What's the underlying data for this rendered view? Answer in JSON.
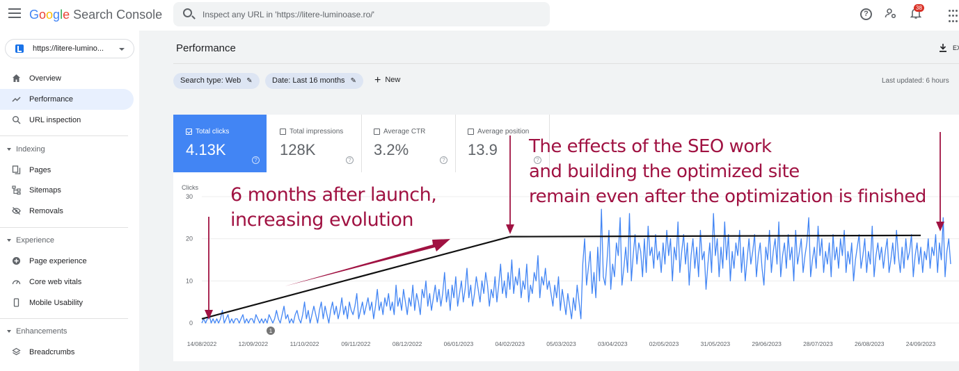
{
  "header": {
    "logo_letters": [
      "G",
      "o",
      "o",
      "g",
      "l",
      "e"
    ],
    "product": "Search Console",
    "search_placeholder": "Inspect any URL in 'https://litere-luminoase.ro/'",
    "notification_count": "38"
  },
  "sidebar": {
    "property": "https://litere-lumino...",
    "items_top": [
      {
        "label": "Overview",
        "icon": "home-icon"
      },
      {
        "label": "Performance",
        "icon": "trending-up-icon",
        "active": true
      },
      {
        "label": "URL inspection",
        "icon": "search-icon"
      }
    ],
    "sections": [
      {
        "label": "Indexing",
        "items": [
          {
            "label": "Pages",
            "icon": "pages-icon"
          },
          {
            "label": "Sitemaps",
            "icon": "sitemap-icon"
          },
          {
            "label": "Removals",
            "icon": "removals-icon"
          }
        ]
      },
      {
        "label": "Experience",
        "items": [
          {
            "label": "Page experience",
            "icon": "page-experience-icon"
          },
          {
            "label": "Core web vitals",
            "icon": "speed-icon"
          },
          {
            "label": "Mobile Usability",
            "icon": "mobile-icon"
          }
        ]
      },
      {
        "label": "Enhancements",
        "items": [
          {
            "label": "Breadcrumbs",
            "icon": "layers-icon"
          }
        ]
      }
    ]
  },
  "main": {
    "title": "Performance",
    "export_label": "EX",
    "filters": [
      "Search type: Web",
      "Date: Last 16 months"
    ],
    "new_label": "New",
    "last_updated": "Last updated: 6 hours"
  },
  "metrics": [
    {
      "label": "Total clicks",
      "value": "4.13K",
      "selected": true
    },
    {
      "label": "Total impressions",
      "value": "128K",
      "selected": false
    },
    {
      "label": "Average CTR",
      "value": "3.2%",
      "selected": false
    },
    {
      "label": "Average position",
      "value": "13.9",
      "selected": false
    }
  ],
  "annotations": {
    "left": [
      "6 months after launch,",
      "increasing evolution"
    ],
    "right": [
      "The effects of the SEO work",
      "and building the optimized site",
      "remain even after the optimization is finished"
    ],
    "annotation_color": "#a01242",
    "marker_label": "1"
  },
  "chart_data": {
    "type": "line",
    "ylabel": "Clicks",
    "ylim": [
      0,
      30
    ],
    "yticks": [
      0,
      10,
      20,
      30
    ],
    "x_tick_labels": [
      "14/08/2022",
      "12/09/2022",
      "11/10/2022",
      "09/11/2022",
      "08/12/2022",
      "06/01/2023",
      "04/02/2023",
      "05/03/2023",
      "03/04/2023",
      "02/05/2023",
      "31/05/2023",
      "29/06/2023",
      "28/07/2023",
      "26/08/2023",
      "24/09/2023"
    ],
    "series_color": "#4285f4",
    "trend_lines": [
      {
        "from": [
          "14/08/2022",
          1
        ],
        "to": [
          "04/02/2023",
          20.5
        ]
      },
      {
        "from": [
          "04/02/2023",
          20.5
        ],
        "to": [
          "24/09/2023",
          20.8
        ]
      }
    ],
    "values": [
      0,
      1,
      0,
      1,
      2,
      0,
      1,
      0,
      1,
      0,
      1,
      3,
      0,
      1,
      2,
      0,
      1,
      0,
      1,
      1,
      0,
      1,
      2,
      0,
      1,
      0,
      1,
      1,
      0,
      2,
      1,
      0,
      1,
      0,
      1,
      0,
      2,
      1,
      0,
      1,
      3,
      1,
      0,
      2,
      4,
      1,
      2,
      0,
      1,
      0,
      2,
      3,
      1,
      0,
      2,
      5,
      1,
      3,
      0,
      2,
      4,
      2,
      0,
      3,
      5,
      1,
      4,
      2,
      0,
      3,
      5,
      2,
      4,
      1,
      3,
      6,
      2,
      4,
      1,
      5,
      3,
      2,
      4,
      7,
      1,
      3,
      5,
      2,
      4,
      6,
      3,
      5,
      1,
      4,
      8,
      3,
      5,
      2,
      6,
      4,
      7,
      3,
      5,
      2,
      9,
      4,
      6,
      3,
      8,
      5,
      2,
      6,
      4,
      9,
      3,
      7,
      5,
      2,
      8,
      6,
      10,
      4,
      7,
      3,
      6,
      9,
      5,
      8,
      4,
      7,
      12,
      5,
      8,
      3,
      9,
      6,
      11,
      4,
      7,
      10,
      5,
      8,
      13,
      6,
      9,
      4,
      7,
      11,
      8,
      5,
      10,
      7,
      12,
      9,
      4,
      8,
      6,
      11,
      5,
      9,
      14,
      7,
      10,
      6,
      12,
      8,
      15,
      7,
      11,
      9,
      13,
      6,
      10,
      8,
      14,
      5,
      9,
      7,
      12,
      10,
      16,
      6,
      11,
      9,
      13,
      8,
      10,
      7,
      4,
      9,
      6,
      11,
      3,
      8,
      5,
      2,
      7,
      4,
      1,
      6,
      3,
      9,
      5,
      1,
      14,
      20,
      9,
      13,
      17,
      7,
      12,
      6,
      18,
      10,
      27,
      11,
      9,
      15,
      22,
      8,
      14,
      11,
      19,
      16,
      25,
      9,
      13,
      18,
      12,
      26,
      10,
      16,
      21,
      14,
      19,
      17,
      11,
      20,
      12,
      23,
      16,
      18,
      13,
      21,
      15,
      17,
      12,
      19,
      14,
      22,
      16,
      20,
      10,
      18,
      15,
      24,
      12,
      17,
      21,
      14,
      19,
      9,
      16,
      20,
      13,
      18,
      11,
      22,
      15,
      17,
      8,
      14,
      19,
      12,
      26,
      16,
      20,
      11,
      18,
      13,
      24,
      15,
      21,
      10,
      17,
      13,
      19,
      16,
      22,
      12,
      18,
      10,
      15,
      20,
      14,
      17,
      21,
      11,
      16,
      19,
      13,
      9,
      18,
      15,
      22,
      12,
      17,
      20,
      14,
      24,
      11,
      16,
      19,
      13,
      21,
      15,
      18,
      10,
      22,
      14,
      17,
      20,
      12,
      16,
      19,
      25,
      11,
      15,
      18,
      13,
      23,
      16,
      20,
      12,
      17,
      14,
      19,
      11,
      21,
      15,
      18,
      13,
      20,
      16,
      22,
      12,
      17,
      14,
      19,
      10,
      15,
      18,
      21,
      13,
      16,
      20,
      12,
      17,
      14,
      23,
      11,
      16,
      19,
      15,
      18,
      13,
      17,
      20,
      12,
      15,
      19,
      14,
      22,
      16,
      12,
      18,
      13,
      20,
      15,
      17,
      21,
      11,
      16,
      19,
      14,
      18,
      12,
      17,
      15,
      20,
      13,
      18,
      16,
      21,
      12,
      19,
      15,
      25,
      11,
      17,
      20,
      14
    ]
  }
}
